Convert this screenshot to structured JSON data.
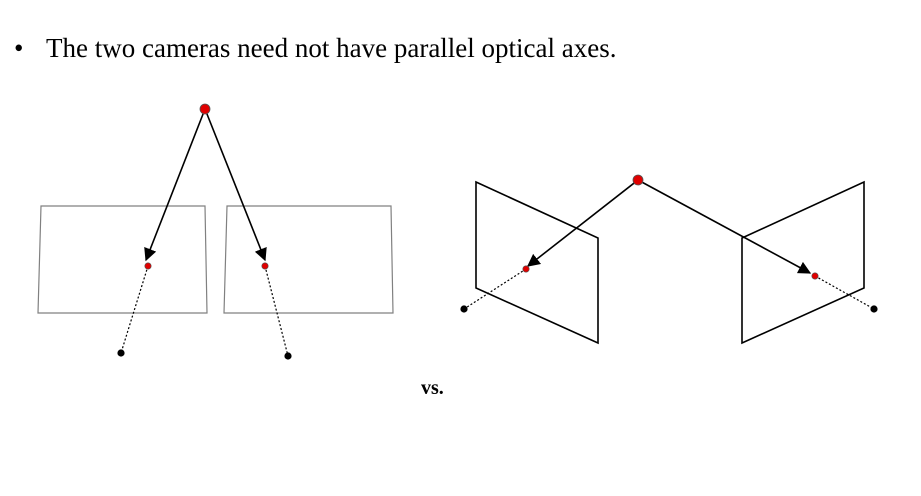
{
  "slide": {
    "bullet_symbol": "•",
    "bullet_text": "The two cameras need not have parallel optical axes.",
    "vs_label": "vs."
  },
  "colors": {
    "scene_point": "#e00000",
    "camera_center": "#000000",
    "image_plane_parallel": "#808080",
    "image_plane_converging": "#000000",
    "ray": "#000000"
  }
}
